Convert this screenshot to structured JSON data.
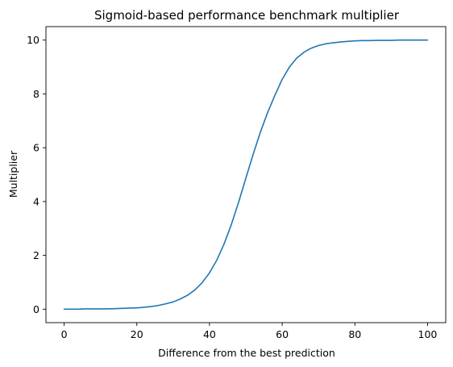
{
  "chart_data": {
    "type": "line",
    "title": "Sigmoid-based performance benchmark multiplier",
    "xlabel": "Difference from the best prediction",
    "ylabel": "Multiplier",
    "xlim": [
      -5,
      105
    ],
    "ylim": [
      -0.5,
      10.5
    ],
    "xticks": [
      0,
      20,
      40,
      60,
      80,
      100
    ],
    "yticks": [
      0,
      2,
      4,
      6,
      8,
      10
    ],
    "xtick_labels": [
      "0",
      "20",
      "40",
      "60",
      "80",
      "100"
    ],
    "ytick_labels": [
      "0",
      "2",
      "4",
      "6",
      "8",
      "10"
    ],
    "grid": false,
    "series": [
      {
        "color": "#1f77b4",
        "x": [
          0,
          2,
          4,
          6,
          8,
          10,
          12,
          14,
          16,
          18,
          20,
          22,
          24,
          26,
          28,
          30,
          32,
          34,
          36,
          38,
          40,
          42,
          44,
          46,
          48,
          50,
          52,
          54,
          56,
          58,
          60,
          62,
          64,
          66,
          68,
          70,
          72,
          74,
          76,
          78,
          80,
          82,
          84,
          86,
          88,
          90,
          92,
          94,
          96,
          98,
          100
        ],
        "y": [
          0.0,
          0.0,
          0.0,
          0.01,
          0.01,
          0.01,
          0.01,
          0.02,
          0.03,
          0.04,
          0.05,
          0.07,
          0.1,
          0.14,
          0.2,
          0.27,
          0.38,
          0.52,
          0.72,
          0.99,
          1.35,
          1.82,
          2.42,
          3.14,
          3.97,
          4.87,
          5.75,
          6.58,
          7.31,
          7.95,
          8.54,
          9.0,
          9.33,
          9.55,
          9.7,
          9.8,
          9.86,
          9.9,
          9.93,
          9.95,
          9.97,
          9.98,
          9.98,
          9.99,
          9.99,
          9.99,
          10.0,
          10.0,
          10.0,
          10.0,
          10.0
        ]
      }
    ]
  }
}
